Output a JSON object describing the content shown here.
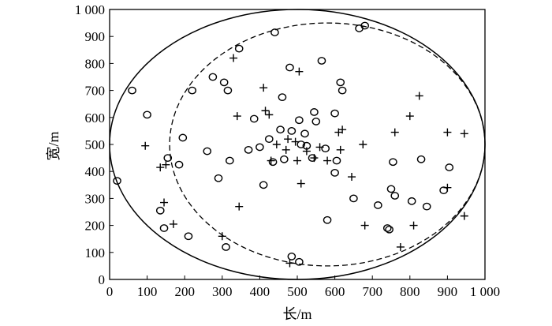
{
  "chart_data": {
    "type": "scatter",
    "title": "",
    "xlabel": "长/m",
    "ylabel": "宽/m",
    "xlim": [
      0,
      1000
    ],
    "ylim": [
      0,
      1000
    ],
    "x_ticks": [
      0,
      100,
      200,
      300,
      400,
      500,
      600,
      700,
      800,
      900,
      1000
    ],
    "y_ticks": [
      0,
      100,
      200,
      300,
      400,
      500,
      600,
      700,
      800,
      900,
      1000
    ],
    "x_tick_labels": [
      "0",
      "100",
      "200",
      "300",
      "400",
      "500",
      "600",
      "700",
      "800",
      "900",
      "1 000"
    ],
    "y_tick_labels": [
      "0",
      "100",
      "200",
      "300",
      "400",
      "500",
      "600",
      "700",
      "800",
      "900",
      "1 000"
    ],
    "grid": false,
    "legend": "none",
    "series": [
      {
        "marker": "circle",
        "points": [
          [
            20,
            365
          ],
          [
            60,
            700
          ],
          [
            100,
            610
          ],
          [
            135,
            255
          ],
          [
            145,
            190
          ],
          [
            155,
            450
          ],
          [
            185,
            425
          ],
          [
            195,
            525
          ],
          [
            210,
            160
          ],
          [
            220,
            700
          ],
          [
            260,
            475
          ],
          [
            275,
            750
          ],
          [
            290,
            375
          ],
          [
            305,
            730
          ],
          [
            310,
            120
          ],
          [
            315,
            700
          ],
          [
            320,
            440
          ],
          [
            345,
            855
          ],
          [
            370,
            480
          ],
          [
            385,
            595
          ],
          [
            400,
            490
          ],
          [
            410,
            350
          ],
          [
            425,
            520
          ],
          [
            435,
            435
          ],
          [
            440,
            915
          ],
          [
            455,
            555
          ],
          [
            460,
            675
          ],
          [
            465,
            445
          ],
          [
            480,
            785
          ],
          [
            485,
            550
          ],
          [
            485,
            85
          ],
          [
            505,
            590
          ],
          [
            505,
            65
          ],
          [
            510,
            500
          ],
          [
            520,
            540
          ],
          [
            525,
            495
          ],
          [
            540,
            450
          ],
          [
            545,
            620
          ],
          [
            550,
            585
          ],
          [
            565,
            810
          ],
          [
            575,
            485
          ],
          [
            580,
            220
          ],
          [
            600,
            615
          ],
          [
            600,
            395
          ],
          [
            605,
            440
          ],
          [
            615,
            730
          ],
          [
            620,
            700
          ],
          [
            650,
            300
          ],
          [
            665,
            930
          ],
          [
            680,
            940
          ],
          [
            715,
            275
          ],
          [
            740,
            190
          ],
          [
            745,
            185
          ],
          [
            750,
            335
          ],
          [
            755,
            435
          ],
          [
            760,
            310
          ],
          [
            805,
            290
          ],
          [
            830,
            445
          ],
          [
            845,
            270
          ],
          [
            890,
            330
          ],
          [
            905,
            415
          ]
        ]
      },
      {
        "marker": "plus",
        "points": [
          [
            95,
            495
          ],
          [
            135,
            415
          ],
          [
            145,
            285
          ],
          [
            150,
            425
          ],
          [
            170,
            205
          ],
          [
            300,
            160
          ],
          [
            330,
            820
          ],
          [
            340,
            605
          ],
          [
            345,
            270
          ],
          [
            410,
            710
          ],
          [
            415,
            625
          ],
          [
            425,
            610
          ],
          [
            430,
            440
          ],
          [
            445,
            500
          ],
          [
            470,
            480
          ],
          [
            475,
            520
          ],
          [
            480,
            60
          ],
          [
            495,
            510
          ],
          [
            500,
            440
          ],
          [
            505,
            770
          ],
          [
            510,
            355
          ],
          [
            525,
            475
          ],
          [
            545,
            450
          ],
          [
            560,
            490
          ],
          [
            580,
            440
          ],
          [
            610,
            545
          ],
          [
            615,
            480
          ],
          [
            620,
            555
          ],
          [
            645,
            380
          ],
          [
            675,
            500
          ],
          [
            680,
            200
          ],
          [
            760,
            545
          ],
          [
            775,
            120
          ],
          [
            800,
            605
          ],
          [
            810,
            200
          ],
          [
            825,
            680
          ],
          [
            900,
            545
          ],
          [
            900,
            340
          ],
          [
            945,
            540
          ],
          [
            945,
            235
          ]
        ]
      }
    ],
    "annotations": [
      {
        "shape": "ellipse",
        "line": "solid",
        "center": [
          500,
          500
        ],
        "rx": 500,
        "ry": 500
      },
      {
        "shape": "ellipse",
        "line": "dashed",
        "center": [
          580,
          500
        ],
        "rx": 420,
        "ry": 450
      }
    ]
  }
}
